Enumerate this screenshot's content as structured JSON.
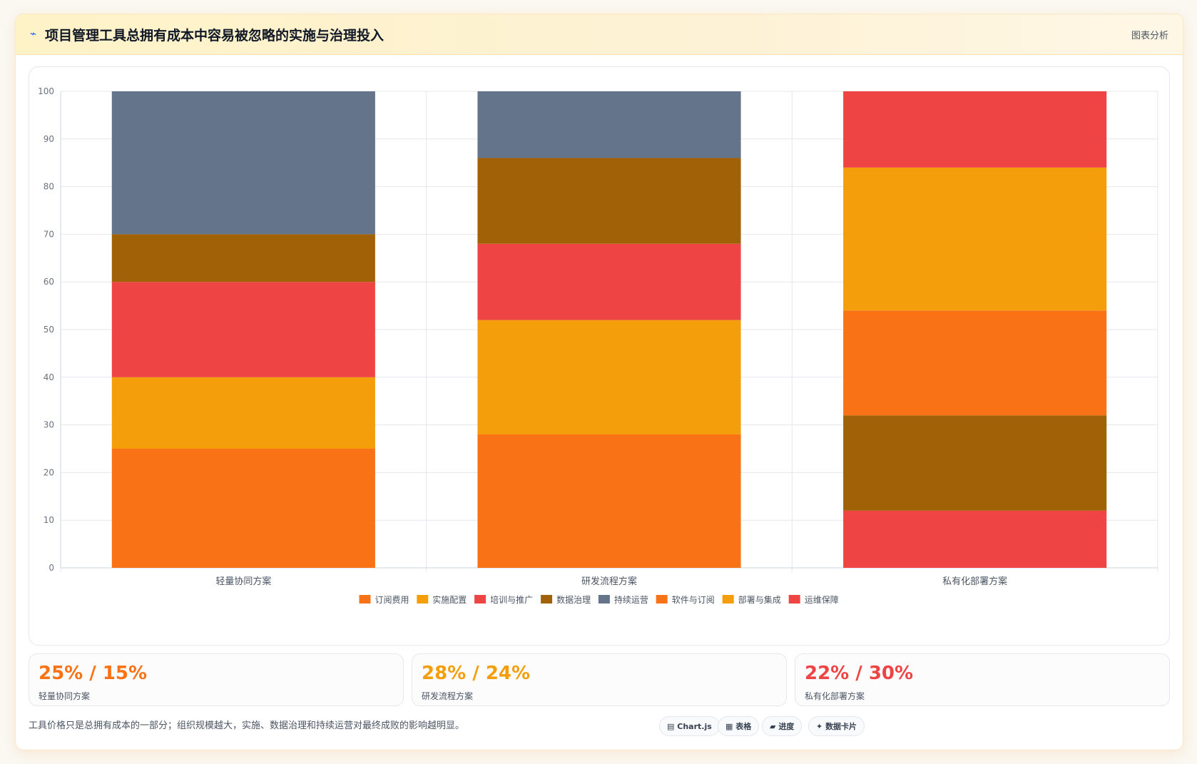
{
  "header": {
    "icon": "pulse-icon",
    "title": "项目管理工具总拥有成本中容易被忽略的实施与治理投入",
    "analysis_label": "图表分析"
  },
  "chart_data": {
    "type": "bar",
    "stacked": true,
    "categories": [
      "轻量协同方案",
      "研发流程方案",
      "私有化部署方案"
    ],
    "ylim": [
      0,
      100
    ],
    "yticks": [
      0,
      10,
      20,
      30,
      40,
      50,
      60,
      70,
      80,
      90,
      100
    ],
    "grid": true,
    "legend_position": "bottom",
    "series": [
      {
        "name": "订阅费用",
        "color": "#f97316",
        "values": [
          25,
          28,
          0
        ]
      },
      {
        "name": "实施配置",
        "color": "#f59e0b",
        "values": [
          15,
          24,
          0
        ]
      },
      {
        "name": "培训与推广",
        "color": "#ef4444",
        "values": [
          20,
          16,
          0
        ]
      },
      {
        "name": "数据治理",
        "color": "#a16207",
        "values": [
          10,
          18,
          20
        ]
      },
      {
        "name": "持续运营",
        "color": "#64748b",
        "values": [
          30,
          14,
          0
        ]
      },
      {
        "name": "软件与订阅",
        "color": "#f97316",
        "values": [
          0,
          0,
          22
        ]
      },
      {
        "name": "部署与集成",
        "color": "#f59e0b",
        "values": [
          0,
          0,
          30
        ]
      },
      {
        "name": "运维保障",
        "color": "#ef4444",
        "values": [
          0,
          0,
          28
        ]
      }
    ],
    "stack_order": [
      [
        0,
        1,
        2,
        3,
        4
      ],
      [
        0,
        1,
        2,
        3,
        4
      ],
      [
        7,
        3,
        5,
        6,
        7
      ]
    ],
    "stack_values": [
      [
        25,
        15,
        20,
        10,
        30
      ],
      [
        28,
        24,
        16,
        18,
        14
      ],
      [
        12,
        20,
        22,
        30,
        16
      ]
    ]
  },
  "stats": [
    {
      "value": "25% / 15%",
      "label": "轻量协同方案",
      "color": "#f97316"
    },
    {
      "value": "28% / 24%",
      "label": "研发流程方案",
      "color": "#f59e0b"
    },
    {
      "value": "22% / 30%",
      "label": "私有化部署方案",
      "color": "#ef4444"
    }
  ],
  "footnote": "工具价格只是总拥有成本的一部分；组织规模越大，实施、数据治理和持续运营对最终成败的影响越明显。",
  "tags": [
    {
      "icon": "chart-icon",
      "glyph": "▤",
      "label": "Chart.js"
    },
    {
      "icon": "table-icon",
      "glyph": "▦",
      "label": "表格"
    },
    {
      "icon": "progress-icon",
      "glyph": "▰",
      "label": "进度"
    },
    {
      "icon": "sparkle-icon",
      "glyph": "✦",
      "label": "数据卡片"
    }
  ]
}
